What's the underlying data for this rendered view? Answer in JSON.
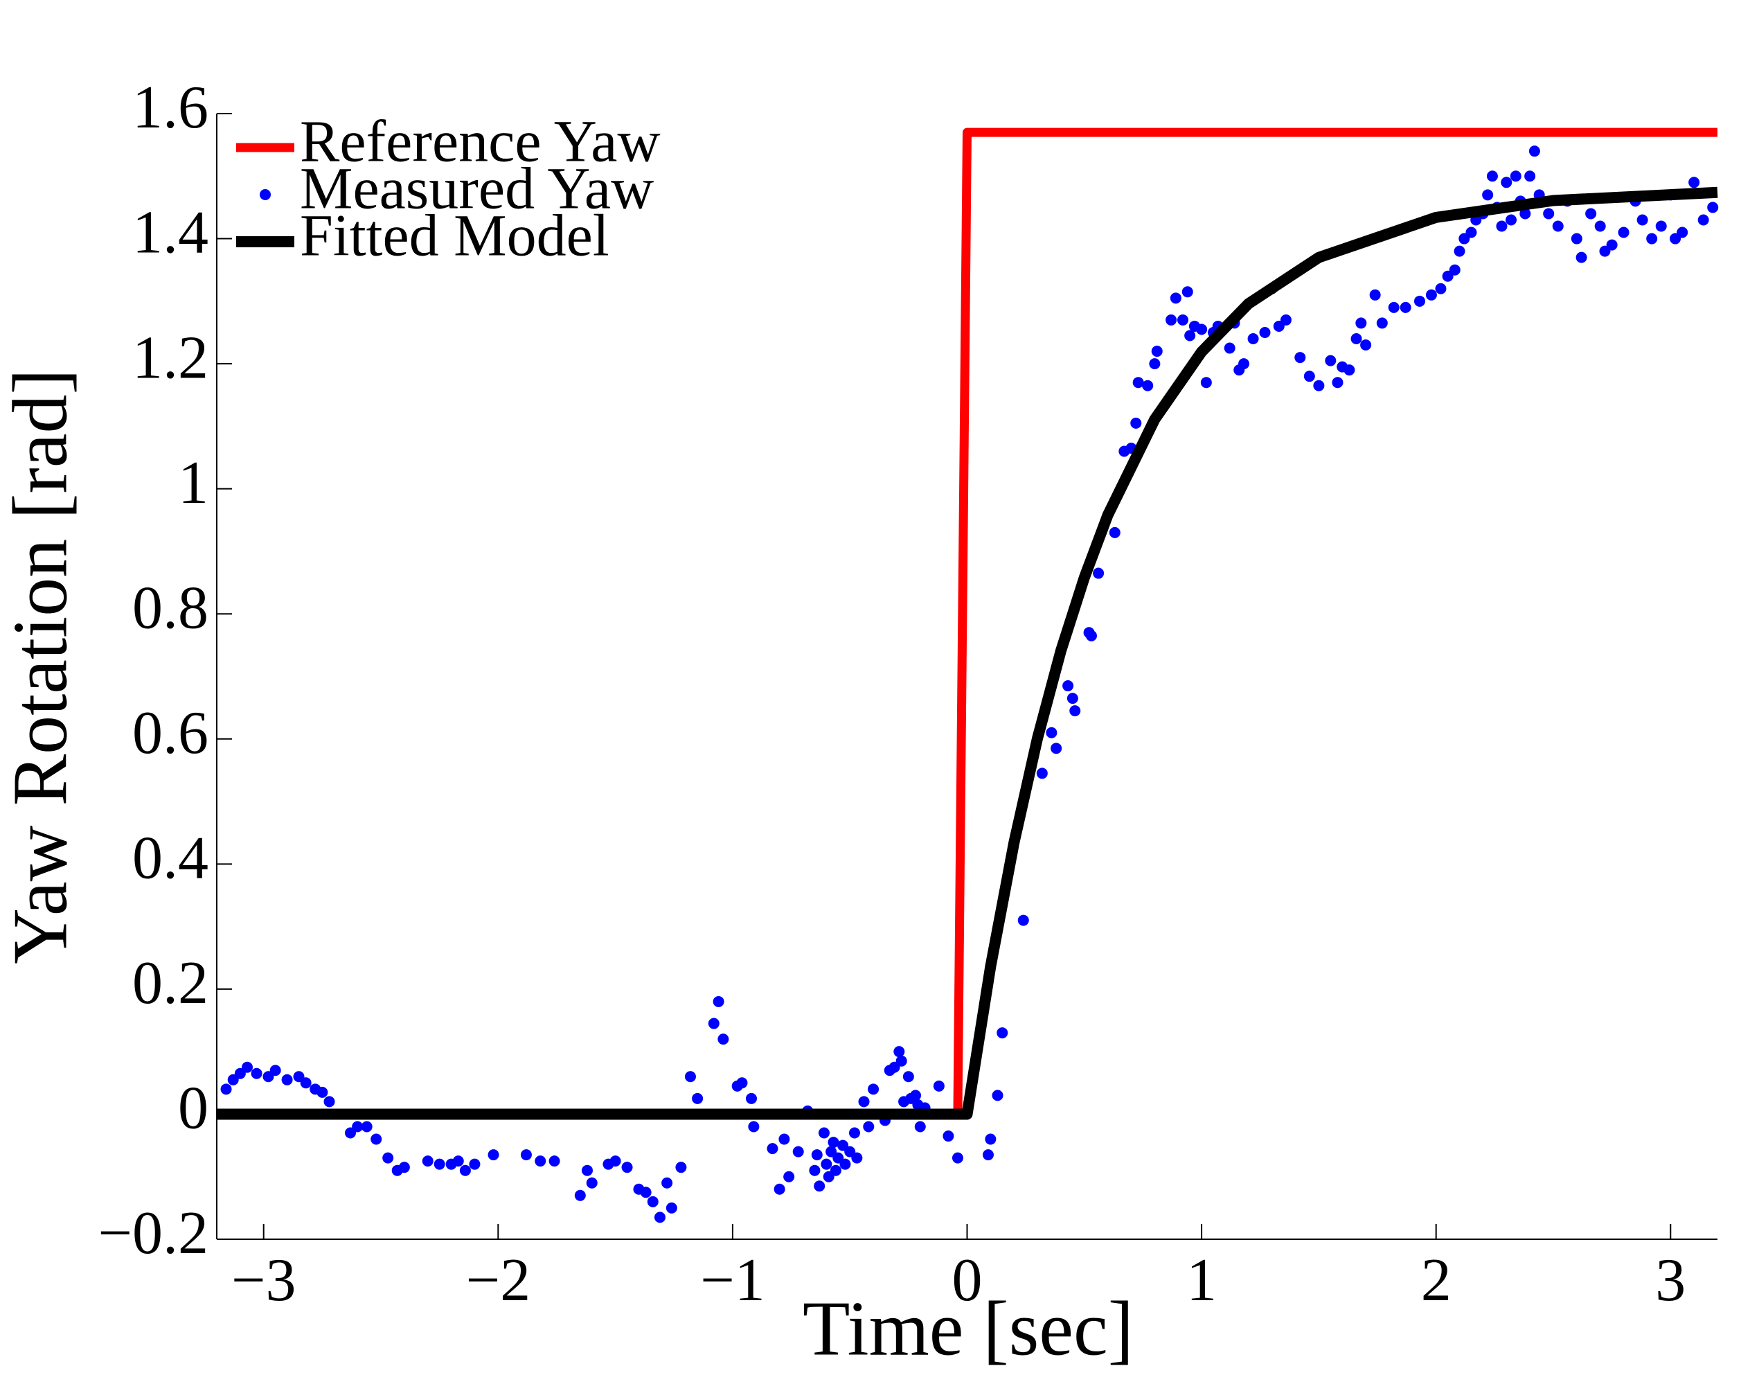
{
  "chart_data": {
    "type": "line",
    "xlabel": "Time [sec]",
    "ylabel": "Yaw Rotation [rad]",
    "xlim": [
      -3.2,
      3.2
    ],
    "ylim": [
      -0.2,
      1.6
    ],
    "xticks": [
      {
        "value": -3,
        "label": "−3"
      },
      {
        "value": -2,
        "label": "−2"
      },
      {
        "value": -1,
        "label": "−1"
      },
      0,
      1,
      2,
      3
    ],
    "yticks": [
      {
        "value": -0.2,
        "label": "−0.2"
      },
      0,
      0.2,
      0.4,
      0.6,
      0.8,
      1,
      1.2,
      1.4,
      1.6
    ],
    "legend": "upper left",
    "series": [
      {
        "name": "Reference Yaw",
        "color": "#ff0000",
        "mark": "line",
        "x": [
          -3.2,
          -0.04,
          0,
          3.2
        ],
        "values": [
          0,
          0,
          1.57,
          1.57
        ]
      },
      {
        "name": "Measured Yaw",
        "color": "#0000ff",
        "mark": "dot",
        "x": [
          -3.16,
          -3.13,
          -3.1,
          -3.07,
          -3.03,
          -2.98,
          -2.95,
          -2.9,
          -2.85,
          -2.82,
          -2.78,
          -2.75,
          -2.72,
          -2.68,
          -2.63,
          -2.6,
          -2.56,
          -2.52,
          -2.47,
          -2.43,
          -2.4,
          -2.3,
          -2.25,
          -2.2,
          -2.17,
          -2.14,
          -2.1,
          -2.02,
          -1.88,
          -1.82,
          -1.76,
          -1.65,
          -1.62,
          -1.6,
          -1.53,
          -1.5,
          -1.45,
          -1.4,
          -1.37,
          -1.34,
          -1.31,
          -1.28,
          -1.26,
          -1.22,
          -1.18,
          -1.15,
          -1.08,
          -1.06,
          -1.04,
          -0.98,
          -0.96,
          -0.92,
          -0.91,
          -0.83,
          -0.8,
          -0.78,
          -0.76,
          -0.72,
          -0.68,
          -0.65,
          -0.64,
          -0.63,
          -0.61,
          -0.6,
          -0.59,
          -0.58,
          -0.57,
          -0.56,
          -0.55,
          -0.53,
          -0.52,
          -0.5,
          -0.48,
          -0.47,
          -0.45,
          -0.44,
          -0.42,
          -0.4,
          -0.38,
          -0.35,
          -0.33,
          -0.31,
          -0.29,
          -0.28,
          -0.27,
          -0.25,
          -0.24,
          -0.22,
          -0.21,
          -0.2,
          -0.18,
          -0.15,
          -0.12,
          -0.08,
          -0.04,
          0.09,
          0.1,
          0.13,
          0.15,
          0.24,
          0.32,
          0.36,
          0.38,
          0.43,
          0.45,
          0.46,
          0.52,
          0.53,
          0.56,
          0.63,
          0.67,
          0.7,
          0.72,
          0.73,
          0.77,
          0.8,
          0.81,
          0.87,
          0.89,
          0.92,
          0.94,
          0.95,
          0.97,
          1.0,
          1.02,
          1.05,
          1.07,
          1.12,
          1.14,
          1.16,
          1.18,
          1.22,
          1.27,
          1.3,
          1.33,
          1.36,
          1.42,
          1.46,
          1.5,
          1.55,
          1.58,
          1.6,
          1.63,
          1.66,
          1.68,
          1.7,
          1.74,
          1.77,
          1.82,
          1.87,
          1.93,
          1.98,
          2.02,
          2.05,
          2.08,
          2.1,
          2.12,
          2.15,
          2.17,
          2.2,
          2.22,
          2.24,
          2.26,
          2.28,
          2.3,
          2.32,
          2.34,
          2.36,
          2.38,
          2.4,
          2.42,
          2.44,
          2.48,
          2.52,
          2.56,
          2.6,
          2.62,
          2.66,
          2.7,
          2.72,
          2.75,
          2.8,
          2.85,
          2.88,
          2.92,
          2.96,
          3.0,
          3.02,
          3.05,
          3.1,
          3.14,
          3.18
        ],
        "values": [
          0.04,
          0.055,
          0.065,
          0.075,
          0.065,
          0.06,
          0.07,
          0.055,
          0.06,
          0.05,
          0.04,
          0.035,
          0.02,
          0.0,
          -0.03,
          -0.02,
          -0.02,
          -0.04,
          -0.07,
          -0.09,
          -0.085,
          -0.075,
          -0.08,
          -0.08,
          -0.075,
          -0.09,
          -0.08,
          -0.065,
          -0.065,
          -0.075,
          -0.075,
          -0.13,
          -0.09,
          -0.11,
          -0.08,
          -0.075,
          -0.085,
          -0.12,
          -0.125,
          -0.14,
          -0.165,
          -0.11,
          -0.15,
          -0.085,
          0.06,
          0.025,
          0.145,
          0.18,
          0.12,
          0.045,
          0.05,
          0.025,
          -0.02,
          -0.055,
          -0.12,
          -0.04,
          -0.1,
          -0.06,
          0.005,
          -0.09,
          -0.065,
          -0.115,
          -0.03,
          -0.08,
          -0.1,
          -0.06,
          -0.045,
          -0.09,
          -0.07,
          -0.05,
          -0.08,
          -0.06,
          -0.03,
          -0.07,
          0.0,
          0.02,
          -0.02,
          0.04,
          0.0,
          -0.01,
          0.07,
          0.075,
          0.1,
          0.085,
          0.02,
          0.06,
          0.025,
          0.03,
          0.015,
          -0.02,
          0.01,
          0.0,
          0.045,
          -0.035,
          -0.07,
          -0.065,
          -0.04,
          0.03,
          0.13,
          0.31,
          0.545,
          0.61,
          0.585,
          0.685,
          0.665,
          0.645,
          0.77,
          0.765,
          0.865,
          0.93,
          1.06,
          1.065,
          1.105,
          1.17,
          1.165,
          1.2,
          1.22,
          1.27,
          1.305,
          1.27,
          1.315,
          1.245,
          1.26,
          1.255,
          1.17,
          1.25,
          1.26,
          1.225,
          1.265,
          1.19,
          1.2,
          1.24,
          1.25,
          1.32,
          1.26,
          1.27,
          1.21,
          1.18,
          1.165,
          1.205,
          1.17,
          1.195,
          1.19,
          1.24,
          1.265,
          1.23,
          1.31,
          1.265,
          1.29,
          1.29,
          1.3,
          1.31,
          1.32,
          1.34,
          1.35,
          1.38,
          1.4,
          1.41,
          1.43,
          1.44,
          1.47,
          1.5,
          1.45,
          1.42,
          1.49,
          1.43,
          1.5,
          1.46,
          1.44,
          1.5,
          1.54,
          1.47,
          1.44,
          1.42,
          1.46,
          1.4,
          1.37,
          1.44,
          1.42,
          1.38,
          1.39,
          1.41,
          1.46,
          1.43,
          1.4,
          1.42,
          1.47,
          1.4,
          1.41,
          1.49,
          1.43,
          1.45
        ]
      },
      {
        "name": "Fitted Model",
        "color": "#000000",
        "mark": "line",
        "x": [
          -3.2,
          0,
          0.1,
          0.2,
          0.3,
          0.4,
          0.5,
          0.6,
          0.8,
          1.0,
          1.2,
          1.5,
          2.0,
          2.5,
          3.2
        ],
        "values": [
          0,
          0,
          0.236,
          0.434,
          0.601,
          0.741,
          0.858,
          0.958,
          1.111,
          1.219,
          1.296,
          1.37,
          1.434,
          1.461,
          1.474
        ]
      }
    ]
  }
}
